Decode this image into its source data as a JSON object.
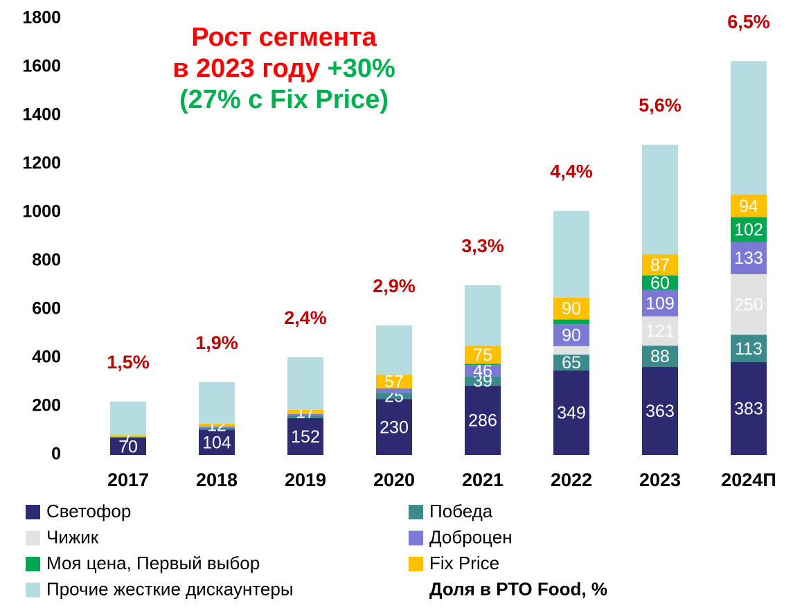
{
  "chart_data": {
    "type": "stacked_bar",
    "categories": [
      "2017",
      "2018",
      "2019",
      "2020",
      "2021",
      "2022",
      "2023",
      "2024П"
    ],
    "ylim": [
      0,
      1800
    ],
    "yticks": [
      0,
      200,
      400,
      600,
      800,
      1000,
      1200,
      1400,
      1600,
      1800
    ],
    "grid": false,
    "series": [
      {
        "name": "Светофор",
        "color": "#2e2a72",
        "values": [
          70,
          104,
          152,
          230,
          286,
          349,
          363,
          383
        ],
        "value_labels": [
          "70",
          "104",
          "152",
          "230",
          "286",
          "349",
          "363",
          "383"
        ]
      },
      {
        "name": "Победа",
        "color": "#3b8a8c",
        "values": [
          5,
          8,
          10,
          25,
          39,
          65,
          88,
          113
        ],
        "value_labels": [
          null,
          null,
          null,
          "25",
          "39",
          "65",
          "88",
          "113"
        ]
      },
      {
        "name": "Чижик",
        "color": "#e2e2e2",
        "values": [
          0,
          0,
          0,
          0,
          0,
          35,
          121,
          250
        ],
        "value_labels": [
          null,
          null,
          null,
          null,
          null,
          null,
          "121",
          "250"
        ]
      },
      {
        "name": "Доброцен",
        "color": "#7b78d6",
        "values": [
          0,
          5,
          7,
          20,
          46,
          90,
          109,
          133
        ],
        "value_labels": [
          null,
          null,
          null,
          null,
          "46",
          "90",
          "109",
          "133"
        ]
      },
      {
        "name": "Моя цена, Первый выбор",
        "color": "#00a651",
        "values": [
          0,
          0,
          0,
          0,
          5,
          20,
          60,
          102
        ],
        "value_labels": [
          null,
          null,
          null,
          null,
          null,
          null,
          "60",
          "102"
        ]
      },
      {
        "name": "Fix Price",
        "color": "#ffc000",
        "values": [
          7,
          12,
          17,
          57,
          75,
          90,
          87,
          94
        ],
        "value_labels": [
          "7",
          "12",
          "17",
          "57",
          "75",
          "90",
          "87",
          "94"
        ]
      },
      {
        "name": "Прочие жесткие дискаунтеры",
        "color": "#b5dde1",
        "values": [
          138,
          171,
          217,
          203,
          249,
          358,
          452,
          550
        ],
        "value_labels": [
          null,
          null,
          null,
          null,
          null,
          null,
          null,
          null
        ]
      }
    ],
    "share_labels": [
      "1,5%",
      "1,9%",
      "2,4%",
      "2,9%",
      "3,3%",
      "4,4%",
      "5,6%",
      "6,5%"
    ],
    "share_legend": "Доля в РТО Food, %",
    "annotation": [
      "Рост сегмента",
      "в 2023 году",
      "+30%",
      "(27% с Fix Price)"
    ]
  }
}
